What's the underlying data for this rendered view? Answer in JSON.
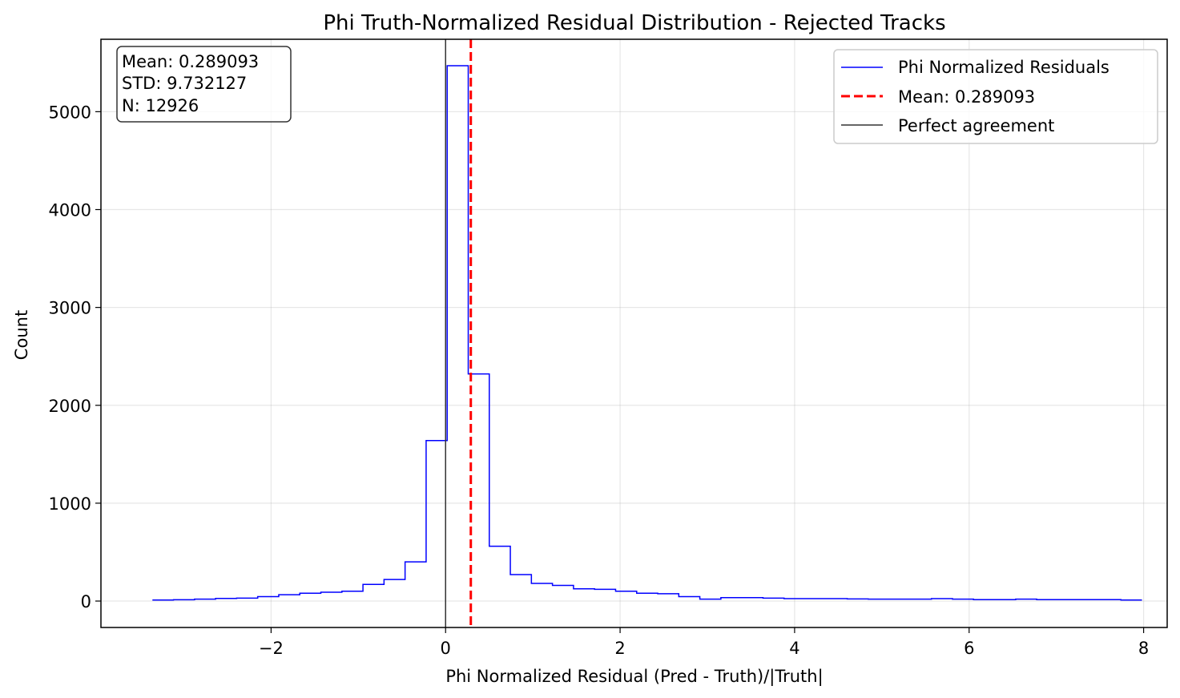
{
  "chart_data": {
    "type": "histogram",
    "title": "Phi Truth-Normalized Residual Distribution - Rejected Tracks",
    "xlabel": "Phi Normalized Residual (Pred - Truth)/|Truth|",
    "ylabel": "Count",
    "xlim": [
      -3.95,
      8.27
    ],
    "ylim": [
      -270,
      5740
    ],
    "xticks": [
      -2,
      0,
      2,
      4,
      6,
      8
    ],
    "xtick_labels": [
      "−2",
      "0",
      "2",
      "4",
      "6",
      "8"
    ],
    "yticks": [
      0,
      1000,
      2000,
      3000,
      4000,
      5000
    ],
    "grid": true,
    "bin_start": -3.36,
    "bin_width": 0.2413,
    "counts": [
      10,
      13,
      20,
      27,
      30,
      45,
      65,
      80,
      90,
      100,
      170,
      220,
      400,
      1640,
      5470,
      2320,
      560,
      270,
      180,
      160,
      125,
      120,
      100,
      80,
      75,
      45,
      20,
      35,
      35,
      30,
      25,
      25,
      25,
      22,
      20,
      20,
      20,
      25,
      20,
      15,
      15,
      20,
      15,
      15,
      15,
      15,
      10
    ],
    "series": [
      {
        "name": "Phi Normalized Residuals",
        "color": "#0000ff",
        "style": "step"
      }
    ],
    "mean_line": {
      "label": "Mean: 0.289093",
      "x": 0.289093,
      "color": "#ff0000",
      "style": "dashed"
    },
    "reference_line": {
      "label": "Perfect agreement",
      "x": 0,
      "color": "#333333"
    },
    "stats_box": {
      "mean": "Mean: 0.289093",
      "std": "STD: 9.732127",
      "n": "N: 12926"
    },
    "legend_position": "top-right"
  }
}
